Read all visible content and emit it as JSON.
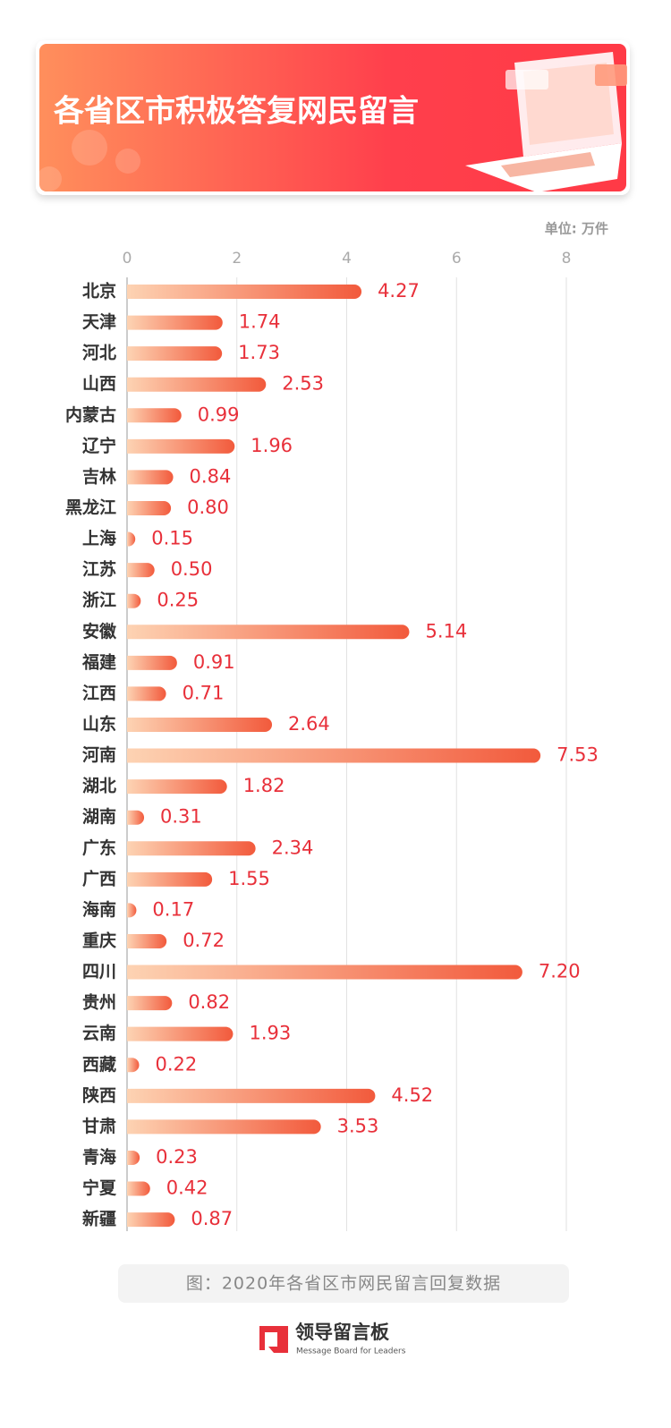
{
  "chart_data": {
    "type": "bar",
    "orientation": "horizontal",
    "title": "各省区市积极答复网民留言",
    "unit_label": "单位: 万件",
    "categories": [
      "北京",
      "天津",
      "河北",
      "山西",
      "内蒙古",
      "辽宁",
      "吉林",
      "黑龙江",
      "上海",
      "江苏",
      "浙江",
      "安徽",
      "福建",
      "江西",
      "山东",
      "河南",
      "湖北",
      "湖南",
      "广东",
      "广西",
      "海南",
      "重庆",
      "四川",
      "贵州",
      "云南",
      "西藏",
      "陕西",
      "甘肃",
      "青海",
      "宁夏",
      "新疆"
    ],
    "values": [
      4.27,
      1.74,
      1.73,
      2.53,
      0.99,
      1.96,
      0.84,
      0.8,
      0.15,
      0.5,
      0.25,
      5.14,
      0.91,
      0.71,
      2.64,
      7.53,
      1.82,
      0.31,
      2.34,
      1.55,
      0.17,
      0.72,
      7.2,
      0.82,
      1.93,
      0.22,
      4.52,
      3.53,
      0.23,
      0.42,
      0.87
    ],
    "value_labels": [
      "4.27",
      "1.74",
      "1.73",
      "2.53",
      "0.99",
      "1.96",
      "0.84",
      "0.80",
      "0.15",
      "0.50",
      "0.25",
      "5.14",
      "0.91",
      "0.71",
      "2.64",
      "7.53",
      "1.82",
      "0.31",
      "2.34",
      "1.55",
      "0.17",
      "0.72",
      "7.20",
      "0.82",
      "1.93",
      "0.22",
      "4.52",
      "3.53",
      "0.23",
      "0.42",
      "0.87"
    ],
    "xlim": [
      0,
      8
    ],
    "xticks": [
      0,
      2,
      4,
      6,
      8
    ],
    "grid": true,
    "color_start": "#fdd3b3",
    "color_end": "#f25a3c",
    "label_color": "#e8303a",
    "caption": "图：2020年各省区市网民留言回复数据",
    "logo_title": "领导留言板",
    "logo_subtitle": "Message Board for Leaders"
  }
}
